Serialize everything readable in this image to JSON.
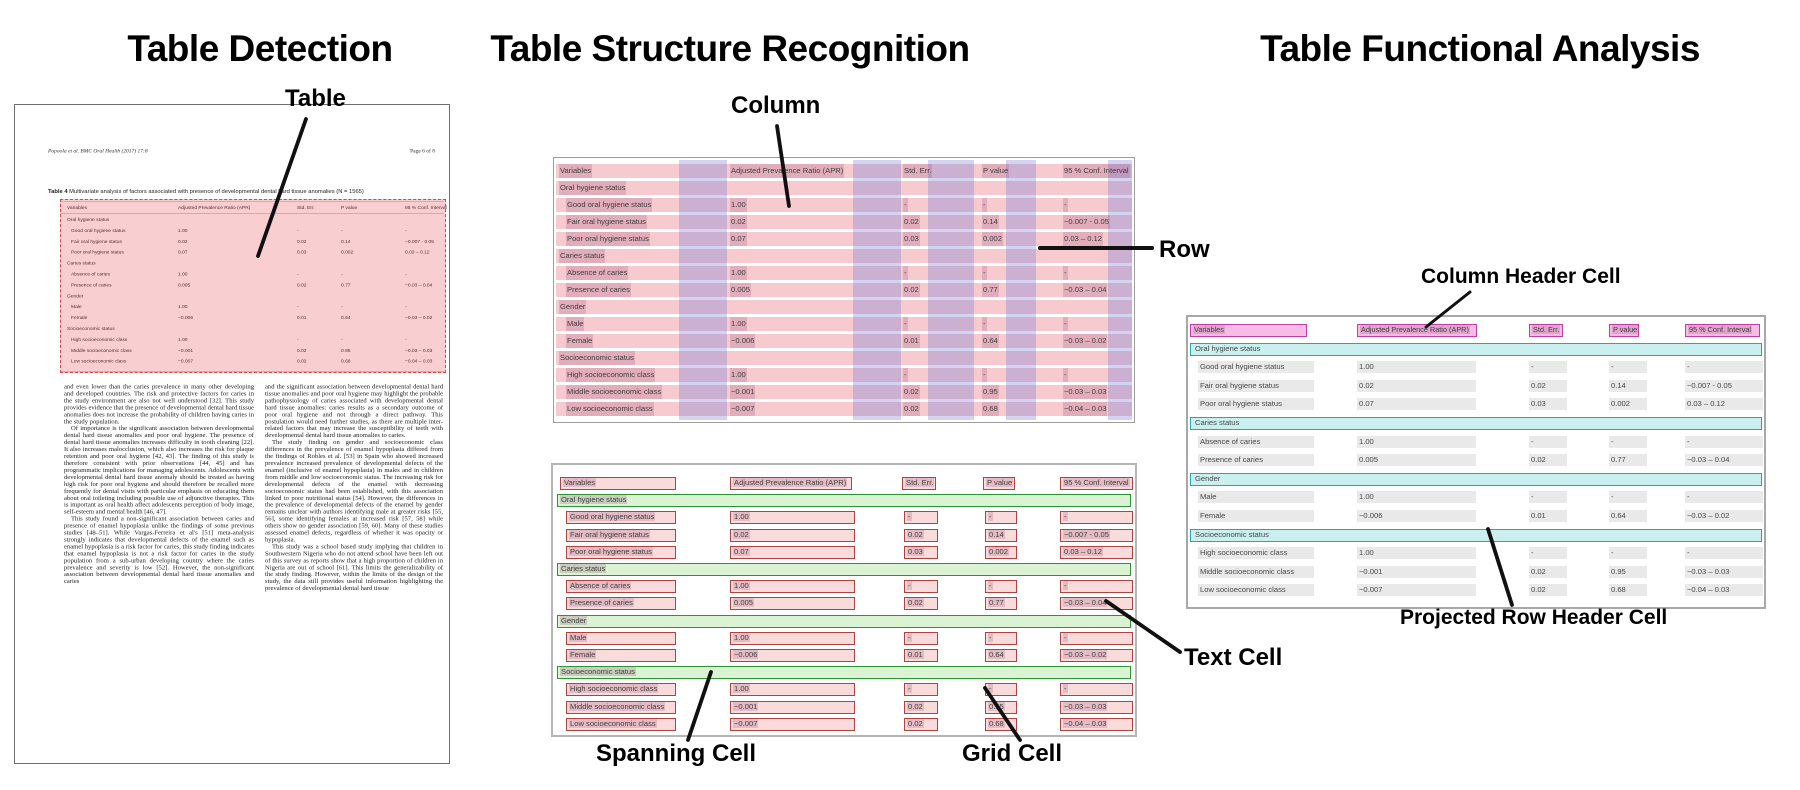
{
  "detection": {
    "title": "Table Detection",
    "callout_table": "Table"
  },
  "structure": {
    "title": "Table Structure Recognition",
    "callout_column": "Column",
    "callout_row": "Row",
    "callout_spanning": "Spanning Cell",
    "callout_text": "Text Cell",
    "callout_grid": "Grid Cell"
  },
  "functional": {
    "title": "Table Functional Analysis",
    "callout_column_header": "Column Header Cell",
    "callout_projected": "Projected Row Header Cell"
  },
  "document": {
    "header_left": "Popoola et al. BMC Oral Health  (2017) 17:8",
    "header_right": "Page 6 of 8",
    "caption_label": "Table 4",
    "caption_text": " Multivariate analysis of factors associated with presence of developmental dental hard tissue anomalies (N = 1565)",
    "body_left": [
      "and even lower than the caries prevalence in many other developing and developed countries. The risk and protective factors for caries in the study environment are also not well understood [32]. This study provides evidence that the presence of developmental dental hard tissue anomalies does not increase the probability of children having caries in the study population.",
      "Of importance is the significant association between developmental dental hard tissue anomalies and poor oral hygiene. The presence of dental hard tissue anomalies increases difficulty in tooth cleaning [22]. It also increases malocclusion, which also increases the risk for plaque retention and poor oral hygiene [42, 43]. The finding of this study is therefore consistent with prior observations [44, 45] and has programmatic implications for managing adolescents. Adolescents with developmental dental hard tissue anomaly should be treated as having high risk for poor oral hygiene and should therefore be recalled more frequently for dental visits with particular emphasis on educating them about oral toileting including possible use of adjunctive therapies. This is important as oral health affect adolescents perception of body image, self-esteem and mental health [46, 47].",
      "This study found a non-significant association between caries and presence of enamel hypoplasia unlike the findings of some previous studies [48–51]. While Vargas-Ferreira et al's [51] meta-analysis strongly indicates that developmental defects of the enamel such as enamel hypoplasia is a risk factor for caries, this study finding indicates that enamel hypoplasia is not a risk factor for caries in the study population from a sub-urban developing country where the caries prevalence and severity is low [52]. However, the non-significant association between developmental dental hard tissue anomalies and caries"
    ],
    "body_right": [
      "and the significant association between developmental dental hard tissue anomalies and poor oral hygiene may highlight the probable pathophysiology of caries associated with developmental dental hard tissue anomalies: caries results as a secondary outcome of poor oral hygiene and not through a direct pathway. This postulation would need further studies, as there are multiple inter-related factors that may increase the susceptibility of teeth with developmental dental hard tissue anomalies to caries.",
      "The study finding on gender and socioeconomic class differences in the prevalence of enamel hypoplasia differed from the findings of Robles et al. [53] in Spain who showed increased prevalence increased prevalence of developmental defects of the enamel (inclusive of enamel hypoplasia) in males and in children from middle and low socioeconomic status. The increasing risk for developmental defects of the enamel with decreasing socioeconomic status had been established, with this association linked to poor nutritional status [54]. However, the differences in the prevalence of developmental defects of the enamel by gender remains unclear with authors identifying male at greater risks [55, 56], some identifying females at increased risk [57, 58] while others show no gender association [59, 60]. Many of these studies assessed enamel defects, regardless of whether it was opacity or hypoplasia.",
      "This study was a school based study implying that children in Southwestern Nigeria who do not attend school have been left out of this survey as reports show that a high proportion of children in Nigeria are out of school [61]. This limits the generalizability of the study finding. However, within the limits of the design of the study, the data still provides useful information highlighting the prevalence of developmental dental hard tissue"
    ]
  },
  "table": {
    "columns": [
      "Variables",
      "Adjusted Prevalence Ratio (APR)",
      "Std. Err.",
      "P value",
      "95 % Conf. Interval"
    ],
    "rows": [
      {
        "type": "section",
        "label": "Oral hygiene status"
      },
      {
        "type": "data",
        "cells": [
          "Good oral hygiene status",
          "1.00",
          "-",
          "-",
          "-"
        ]
      },
      {
        "type": "data",
        "cells": [
          "Fair oral hygiene status",
          "0.02",
          "0.02",
          "0.14",
          "−0.007 - 0.05"
        ]
      },
      {
        "type": "data",
        "cells": [
          "Poor oral hygiene status",
          "0.07",
          "0.03",
          "0.002",
          "0.03 – 0.12"
        ]
      },
      {
        "type": "section",
        "label": "Caries status"
      },
      {
        "type": "data",
        "cells": [
          "Absence of caries",
          "1.00",
          "-",
          "-",
          "-"
        ]
      },
      {
        "type": "data",
        "cells": [
          "Presence of caries",
          "0.005",
          "0.02",
          "0.77",
          "−0.03 – 0.04"
        ]
      },
      {
        "type": "section",
        "label": "Gender"
      },
      {
        "type": "data",
        "cells": [
          "Male",
          "1.00",
          "-",
          "-",
          "-"
        ]
      },
      {
        "type": "data",
        "cells": [
          "Female",
          "−0.006",
          "0.01",
          "0.64",
          "−0.03 – 0.02"
        ]
      },
      {
        "type": "section",
        "label": "Socioeconomic status"
      },
      {
        "type": "data",
        "cells": [
          "High socioeconomic class",
          "1.00",
          "-",
          "-",
          "-"
        ]
      },
      {
        "type": "data",
        "cells": [
          "Middle socioeconomic class",
          "−0.001",
          "0.02",
          "0.95",
          "−0.03 – 0.03"
        ]
      },
      {
        "type": "data",
        "cells": [
          "Low socioeconomic class",
          "−0.007",
          "0.02",
          "0.68",
          "−0.04 – 0.03"
        ]
      }
    ]
  },
  "colors": {
    "detection_box_border": "#d9453f",
    "detection_box_fill": "rgba(235,80,90,0.28)",
    "row_overlay": "rgba(228,80,95,0.30)",
    "column_overlay": "rgba(118,124,214,0.33)",
    "text_cell_highlight": "rgba(150,72,112,0.22)",
    "grid_cell_fill": "#fadbdb",
    "grid_cell_border": "#b04340",
    "spanning_cell_fill": "#d9f3d3",
    "spanning_cell_border": "#2e9433",
    "column_header_cell_fill": "#f6bce6",
    "column_header_cell_border": "#bf3fa7",
    "projected_row_header_fill": "#c9f0ee",
    "projected_row_header_border": "#2ba5a5",
    "callout_line": "#101010"
  }
}
